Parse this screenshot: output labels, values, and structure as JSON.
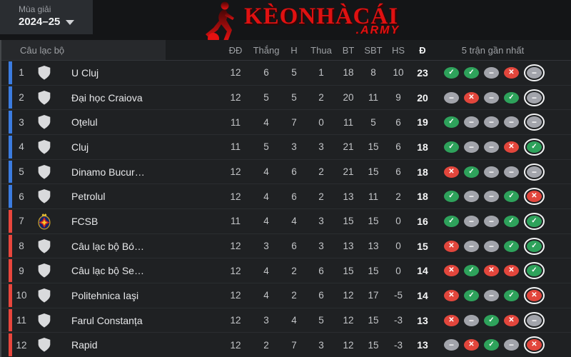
{
  "season": {
    "label": "Mùa giải",
    "value": "2024–25"
  },
  "logo": {
    "title": "KèoNhàCái",
    "suffix": ".ARMY"
  },
  "icons": {
    "win": "✓",
    "draw": "−",
    "loss": "✕"
  },
  "colors": {
    "accent_blue": "#3b7ce0",
    "accent_red": "#e8463d",
    "win": "#2ea25b",
    "draw": "#a2a4ab",
    "loss": "#e2463c",
    "brand": "#e01111"
  },
  "table": {
    "headers": {
      "club": "Câu lạc bộ",
      "played": "ĐĐ",
      "wins": "Thắng",
      "draws": "H",
      "losses": "Thua",
      "gf": "BT",
      "ga": "SBT",
      "gd": "HS",
      "points": "Đ",
      "form": "5 trận gần nhất"
    },
    "rows": [
      {
        "pos": "1",
        "team": "U Cluj",
        "badge": "shield",
        "stripe": "blue",
        "played": "12",
        "wins": "6",
        "draws": "5",
        "losses": "1",
        "gf": "18",
        "ga": "8",
        "gd": "10",
        "points": "23",
        "form": [
          "W",
          "W",
          "D",
          "L",
          "D"
        ]
      },
      {
        "pos": "2",
        "team": "Đại học Craiova",
        "badge": "shield",
        "stripe": "blue",
        "played": "12",
        "wins": "5",
        "draws": "5",
        "losses": "2",
        "gf": "20",
        "ga": "11",
        "gd": "9",
        "points": "20",
        "form": [
          "D",
          "L",
          "D",
          "W",
          "D"
        ]
      },
      {
        "pos": "3",
        "team": "Oțelul",
        "badge": "shield",
        "stripe": "blue",
        "played": "11",
        "wins": "4",
        "draws": "7",
        "losses": "0",
        "gf": "11",
        "ga": "5",
        "gd": "6",
        "points": "19",
        "form": [
          "W",
          "D",
          "D",
          "D",
          "D"
        ]
      },
      {
        "pos": "4",
        "team": "Cluj",
        "badge": "shield",
        "stripe": "blue",
        "played": "11",
        "wins": "5",
        "draws": "3",
        "losses": "3",
        "gf": "21",
        "ga": "15",
        "gd": "6",
        "points": "18",
        "form": [
          "W",
          "D",
          "D",
          "L",
          "W"
        ]
      },
      {
        "pos": "5",
        "team": "Dinamo Bucur…",
        "badge": "shield",
        "stripe": "blue",
        "played": "12",
        "wins": "4",
        "draws": "6",
        "losses": "2",
        "gf": "21",
        "ga": "15",
        "gd": "6",
        "points": "18",
        "form": [
          "L",
          "W",
          "D",
          "D",
          "D"
        ]
      },
      {
        "pos": "6",
        "team": "Petrolul",
        "badge": "shield",
        "stripe": "blue",
        "played": "12",
        "wins": "4",
        "draws": "6",
        "losses": "2",
        "gf": "13",
        "ga": "11",
        "gd": "2",
        "points": "18",
        "form": [
          "W",
          "D",
          "D",
          "W",
          "L"
        ]
      },
      {
        "pos": "7",
        "team": "FCSB",
        "badge": "fcsb",
        "stripe": "red",
        "played": "11",
        "wins": "4",
        "draws": "4",
        "losses": "3",
        "gf": "15",
        "ga": "15",
        "gd": "0",
        "points": "16",
        "form": [
          "W",
          "D",
          "D",
          "W",
          "W"
        ]
      },
      {
        "pos": "8",
        "team": "Câu lạc bộ Bó…",
        "badge": "shield",
        "stripe": "red",
        "played": "12",
        "wins": "3",
        "draws": "6",
        "losses": "3",
        "gf": "13",
        "ga": "13",
        "gd": "0",
        "points": "15",
        "form": [
          "L",
          "D",
          "D",
          "W",
          "W"
        ]
      },
      {
        "pos": "9",
        "team": "Câu lạc bộ Se…",
        "badge": "shield",
        "stripe": "red",
        "played": "12",
        "wins": "4",
        "draws": "2",
        "losses": "6",
        "gf": "15",
        "ga": "15",
        "gd": "0",
        "points": "14",
        "form": [
          "L",
          "W",
          "L",
          "L",
          "W"
        ]
      },
      {
        "pos": "10",
        "team": "Politehnica Iaşi",
        "badge": "shield",
        "stripe": "red",
        "played": "12",
        "wins": "4",
        "draws": "2",
        "losses": "6",
        "gf": "12",
        "ga": "17",
        "gd": "-5",
        "points": "14",
        "form": [
          "L",
          "W",
          "D",
          "W",
          "L"
        ]
      },
      {
        "pos": "11",
        "team": "Farul Constanța",
        "badge": "shield",
        "stripe": "red",
        "played": "12",
        "wins": "3",
        "draws": "4",
        "losses": "5",
        "gf": "12",
        "ga": "15",
        "gd": "-3",
        "points": "13",
        "form": [
          "L",
          "D",
          "W",
          "L",
          "D"
        ]
      },
      {
        "pos": "12",
        "team": "Rapid",
        "badge": "shield",
        "stripe": "red",
        "played": "12",
        "wins": "2",
        "draws": "7",
        "losses": "3",
        "gf": "12",
        "ga": "15",
        "gd": "-3",
        "points": "13",
        "form": [
          "D",
          "L",
          "W",
          "D",
          "L"
        ]
      }
    ]
  }
}
